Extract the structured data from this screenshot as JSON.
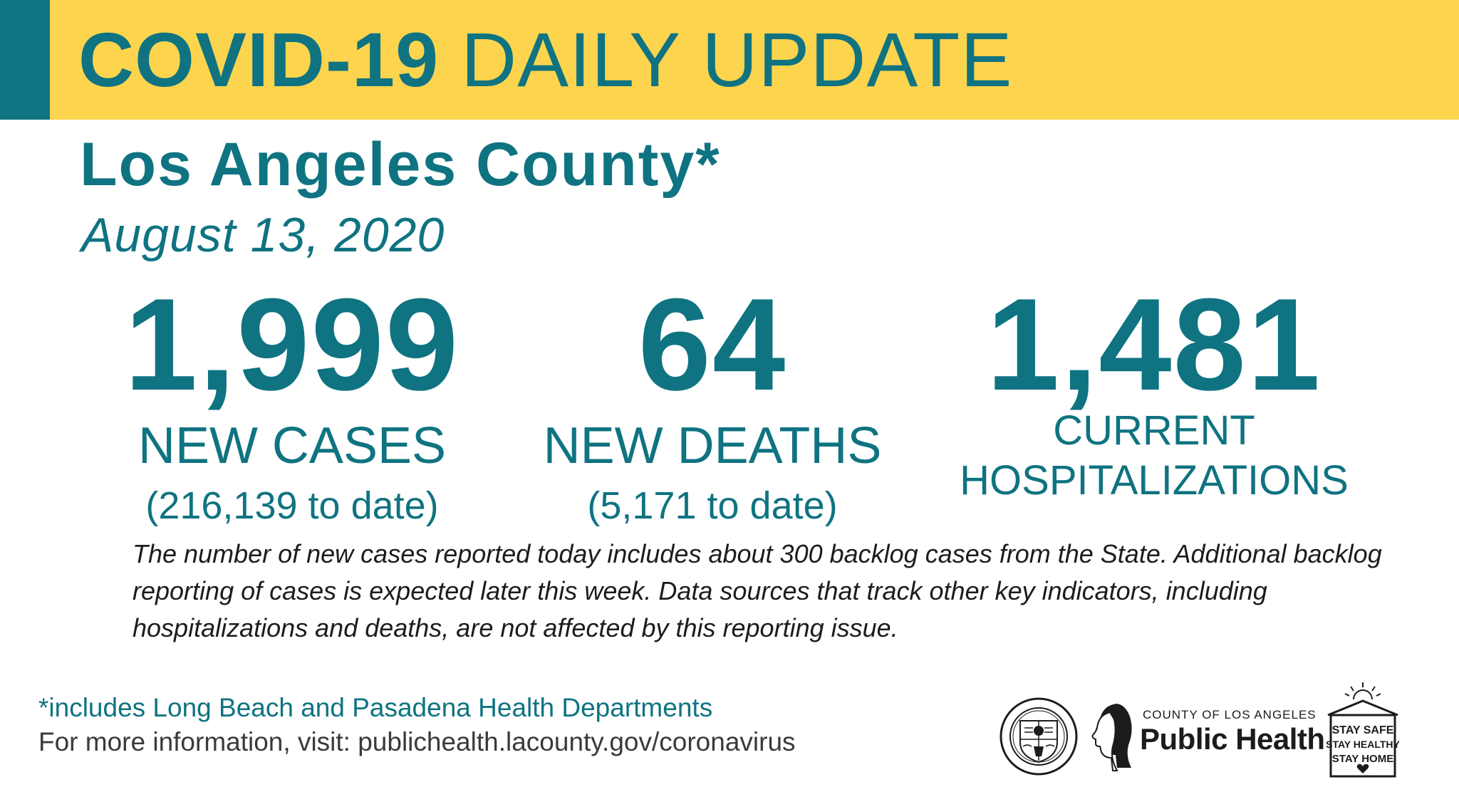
{
  "banner": {
    "title_bold": "COVID-19",
    "title_rest": "DAILY UPDATE",
    "color_background": "#fdd44e",
    "color_accent": "#0f7381"
  },
  "heading": {
    "county": "Los Angeles County*",
    "date": "August 13, 2020"
  },
  "stats": {
    "new_cases": {
      "value": "1,999",
      "label": "NEW CASES",
      "sub": "(216,139 to date)"
    },
    "new_deaths": {
      "value": "64",
      "label": "NEW DEATHS",
      "sub": "(5,171 to date)"
    },
    "hospitalizations": {
      "value": "1,481",
      "label_line1": "CURRENT",
      "label_line2": "HOSPITALIZATIONS"
    }
  },
  "note": "The number of new cases reported today includes about 300 backlog cases from the State. Additional backlog reporting of cases is expected later this week. Data sources that track other key indicators, including hospitalizations and deaths, are not affected by this reporting issue.",
  "footer": {
    "footnote": "*includes Long Beach and Pasadena Health Departments",
    "more_info": "For more information, visit: publichealth.lacounty.gov/coronavirus"
  },
  "logos": {
    "seal_icon": "county-seal-icon",
    "public_health": {
      "county": "COUNTY OF LOS ANGELES",
      "name": "Public Health"
    },
    "stay_safe": {
      "line1": "STAY SAFE",
      "line2": "STAY HEALTHY",
      "line3": "STAY HOME"
    }
  }
}
